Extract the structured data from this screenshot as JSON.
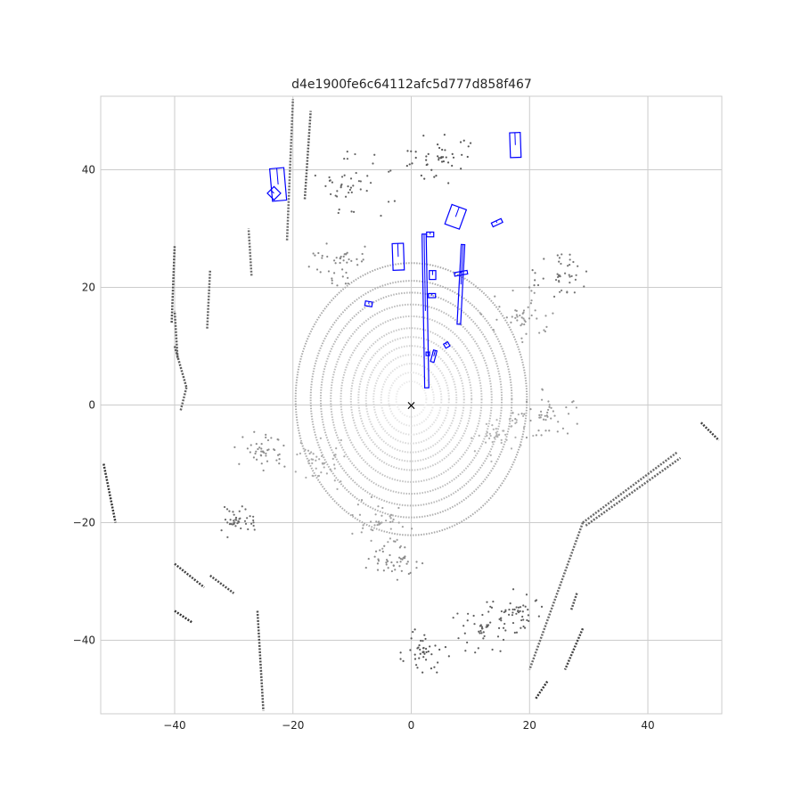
{
  "chart_data": {
    "type": "scatter",
    "title": "d4e1900fe6c64112afc5d777d858f467",
    "xlabel": "",
    "ylabel": "",
    "xlim": [
      -52.5,
      52.5
    ],
    "ylim": [
      -52.5,
      52.5
    ],
    "xticks": [
      -40,
      -20,
      0,
      20,
      40
    ],
    "yticks": [
      -40,
      -20,
      0,
      20,
      40
    ],
    "grid": true,
    "ego_marker": {
      "x": 0,
      "y": 0,
      "symbol": "×"
    },
    "colors": {
      "boxes": "#0000ff",
      "points_far": "#2b2b2b",
      "points_near": "#e6e6e6",
      "grid": "#cccccc"
    },
    "point_features": [
      {
        "name": "left-wall-line",
        "x": [
          -40.5,
          -40
        ],
        "y": [
          14,
          27
        ]
      },
      {
        "name": "left-lower-line",
        "x": [
          -40,
          -38
        ],
        "y": [
          10,
          3
        ]
      },
      {
        "name": "left-lower-line-2",
        "x": [
          -38,
          -39
        ],
        "y": [
          3,
          -1
        ]
      },
      {
        "name": "left-far-line",
        "x": [
          -39.5,
          -40
        ],
        "y": [
          8,
          16
        ]
      },
      {
        "name": "left-curb-1",
        "x": [
          -27,
          -27.5
        ],
        "y": [
          22,
          30
        ]
      },
      {
        "name": "left-curb-2",
        "x": [
          -34.5,
          -34
        ],
        "y": [
          13,
          23
        ]
      },
      {
        "name": "left-road-edge",
        "x": [
          -21,
          -20
        ],
        "y": [
          28,
          52
        ]
      },
      {
        "name": "left-road-edge-2",
        "x": [
          -18,
          -17
        ],
        "y": [
          35,
          50
        ]
      },
      {
        "name": "right-bottom-line-1",
        "x": [
          29,
          45
        ],
        "y": [
          -20,
          -8
        ]
      },
      {
        "name": "right-bottom-line-2",
        "x": [
          29.5,
          45.5
        ],
        "y": [
          -20.5,
          -9
        ]
      },
      {
        "name": "right-bottom-line-3",
        "x": [
          29,
          20
        ],
        "y": [
          -20,
          -45
        ]
      },
      {
        "name": "right-bottom-line-4",
        "x": [
          28,
          27
        ],
        "y": [
          -32,
          -35
        ]
      },
      {
        "name": "right-lower-line-5",
        "x": [
          29,
          26
        ],
        "y": [
          -38,
          -45
        ]
      },
      {
        "name": "right-lower-line-6",
        "x": [
          23,
          21
        ],
        "y": [
          -47,
          -50
        ]
      },
      {
        "name": "lower-left-line-1",
        "x": [
          -40,
          -35
        ],
        "y": [
          -27,
          -31
        ]
      },
      {
        "name": "lower-left-line-2",
        "x": [
          -34,
          -30
        ],
        "y": [
          -29,
          -32
        ]
      },
      {
        "name": "lower-left-line-3",
        "x": [
          -40,
          -37
        ],
        "y": [
          -35,
          -37
        ]
      },
      {
        "name": "lower-left-arc",
        "x": [
          -26,
          -25
        ],
        "y": [
          -35,
          -52
        ]
      },
      {
        "name": "right-side-dots",
        "x": [
          49,
          52
        ],
        "y": [
          -3,
          -6
        ]
      },
      {
        "name": "left-side-dots",
        "x": [
          -52,
          -50
        ],
        "y": [
          -10,
          -20
        ]
      }
    ],
    "rings": [
      3,
      4.5,
      6,
      7.5,
      9,
      10.5,
      12,
      14,
      16,
      18,
      20,
      23
    ],
    "boxes": [
      {
        "cx": -22.5,
        "cy": 37.5,
        "w": 2.4,
        "h": 5.5,
        "angle": 5
      },
      {
        "cx": -23.2,
        "cy": 36,
        "w": 1.6,
        "h": 1.6,
        "angle": 45
      },
      {
        "cx": 17.6,
        "cy": 44.2,
        "w": 1.8,
        "h": 4.2,
        "angle": 2
      },
      {
        "cx": 7.5,
        "cy": 32,
        "w": 2.6,
        "h": 3.5,
        "angle": -20
      },
      {
        "cx": -2.2,
        "cy": 25.2,
        "w": 1.9,
        "h": 4.5,
        "angle": 2
      },
      {
        "cx": 14.5,
        "cy": 31,
        "w": 1.8,
        "h": 0.7,
        "angle": 25
      },
      {
        "cx": 2.4,
        "cy": 16,
        "w": 0.7,
        "h": 26,
        "angle": 1
      },
      {
        "cx": 8.4,
        "cy": 20.5,
        "w": 0.6,
        "h": 13.5,
        "angle": -3
      },
      {
        "cx": 3.2,
        "cy": 29,
        "w": 1.2,
        "h": 0.8,
        "angle": 0
      },
      {
        "cx": 3.6,
        "cy": 22.1,
        "w": 1.1,
        "h": 1.5,
        "angle": 0
      },
      {
        "cx": 3.5,
        "cy": 18.6,
        "w": 1.2,
        "h": 0.7,
        "angle": 0
      },
      {
        "cx": 8.4,
        "cy": 22.4,
        "w": 2.2,
        "h": 0.6,
        "angle": 10
      },
      {
        "cx": -7.2,
        "cy": 17.2,
        "w": 1.2,
        "h": 0.8,
        "angle": -10
      },
      {
        "cx": 3.8,
        "cy": 8.3,
        "w": 0.6,
        "h": 2,
        "angle": -15
      },
      {
        "cx": 6,
        "cy": 10.2,
        "w": 0.8,
        "h": 0.8,
        "angle": 30
      },
      {
        "cx": 2.8,
        "cy": 8.7,
        "w": 0.6,
        "h": 0.6,
        "angle": 0
      }
    ]
  }
}
